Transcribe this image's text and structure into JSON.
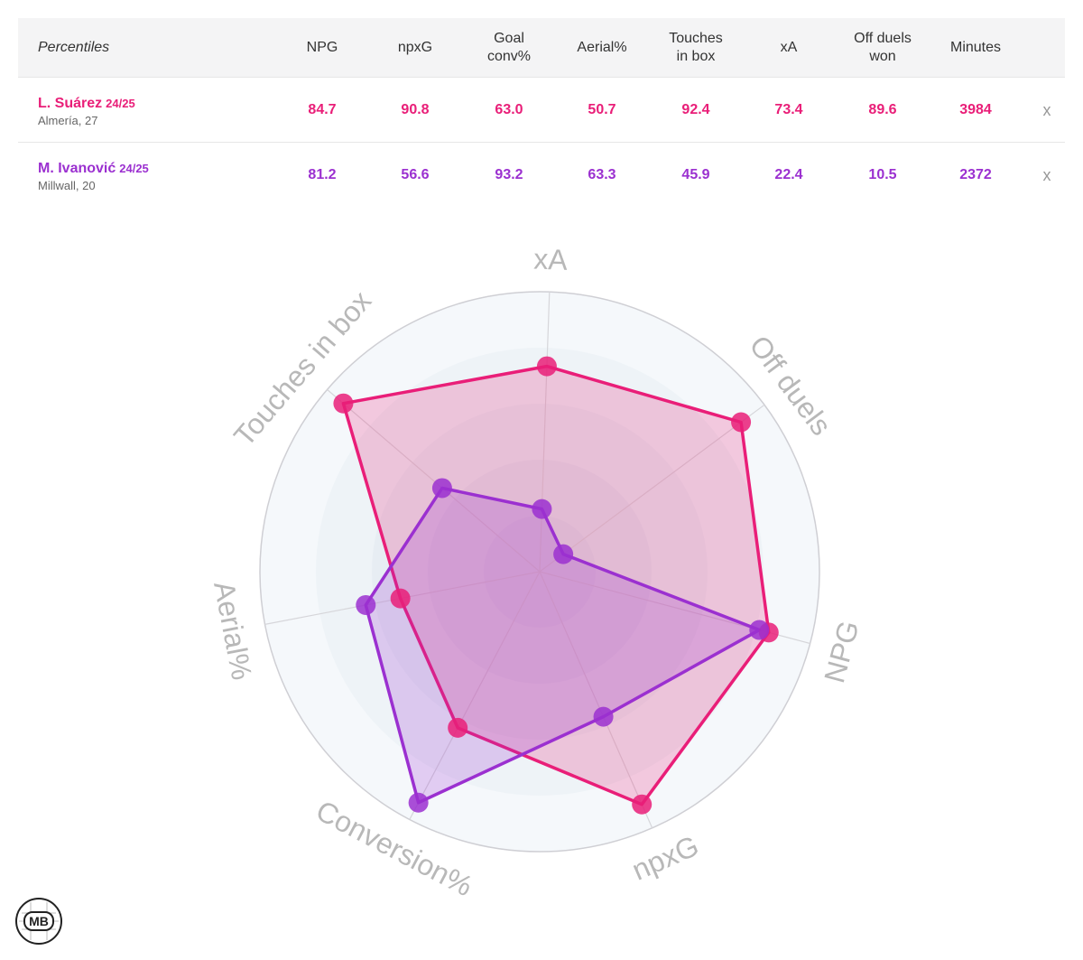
{
  "table": {
    "corner_label": "Percentiles",
    "columns": [
      "NPG",
      "npxG",
      "Goal\nconv%",
      "Aerial%",
      "Touches\nin box",
      "xA",
      "Off duels\nwon",
      "Minutes"
    ],
    "players": [
      {
        "name": "L. Suárez",
        "season": "24/25",
        "club": "Almería, 27",
        "values": [
          "84.7",
          "90.8",
          "63.0",
          "50.7",
          "92.4",
          "73.4",
          "89.6",
          "3984"
        ],
        "color": "#e91e78",
        "remove_label": "x"
      },
      {
        "name": "M. Ivanović",
        "season": "24/25",
        "club": "Millwall, 20",
        "values": [
          "81.2",
          "56.6",
          "93.2",
          "63.3",
          "45.9",
          "22.4",
          "10.5",
          "2372"
        ],
        "color": "#9b30d0",
        "remove_label": "x"
      }
    ]
  },
  "chart_data": {
    "type": "radar",
    "categories": [
      "xA",
      "Off duels",
      "NPG",
      "npxG",
      "Conversion%",
      "Aerial%",
      "Touches in box"
    ],
    "series": [
      {
        "name": "L. Suárez",
        "color": "#e91e78",
        "values": [
          73.4,
          89.6,
          84.7,
          90.8,
          63.0,
          50.7,
          92.4
        ]
      },
      {
        "name": "M. Ivanović",
        "color": "#9b30d0",
        "values": [
          22.4,
          10.5,
          81.2,
          56.6,
          93.2,
          63.3,
          45.9
        ]
      }
    ],
    "rlim": [
      0,
      100
    ],
    "label_color": "#b8b8b8"
  },
  "logo": {
    "text": "MB",
    "icon": "mb-logo-icon"
  }
}
